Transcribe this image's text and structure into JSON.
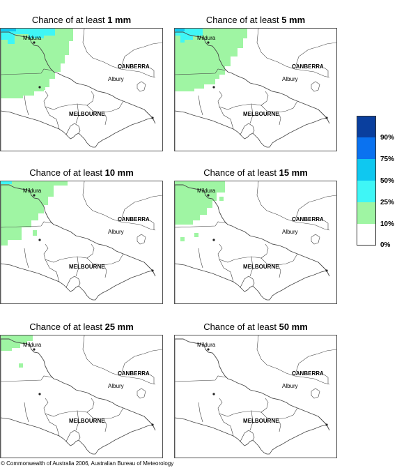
{
  "panels": [
    {
      "title_prefix": "Chance of at least ",
      "amount": "1 mm"
    },
    {
      "title_prefix": "Chance of at least ",
      "amount": "5 mm"
    },
    {
      "title_prefix": "Chance of at least ",
      "amount": "10 mm"
    },
    {
      "title_prefix": "Chance of at least ",
      "amount": "15 mm"
    },
    {
      "title_prefix": "Chance of at least ",
      "amount": "25 mm"
    },
    {
      "title_prefix": "Chance of at least ",
      "amount": "50 mm"
    }
  ],
  "places": {
    "mildura": "Mildura",
    "canberra": "CANBERRA",
    "albury": "Albury",
    "melbourne": "MELBOURNE"
  },
  "legend": {
    "labels": [
      "90%",
      "75%",
      "50%",
      "25%",
      "10%",
      "0%"
    ],
    "colors": [
      "#0a3f9e",
      "#0a72f0",
      "#0fc8f0",
      "#3ff6f6",
      "#9ff5a3",
      "#ffffff"
    ]
  },
  "footer": "© Commonwealth of Australia 2006, Australian Bureau of Meteorology"
}
